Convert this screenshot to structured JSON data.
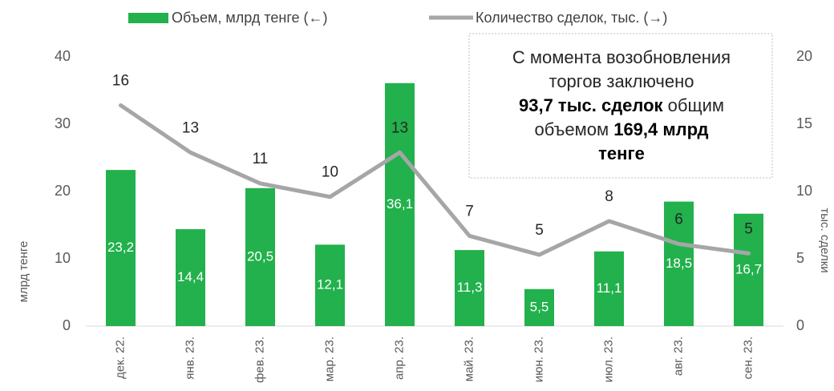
{
  "chart_data": {
    "type": "bar_line",
    "categories": [
      "дек. 22.",
      "янв. 23.",
      "фев. 23.",
      "мар. 23.",
      "апр. 23.",
      "май. 23.",
      "июн. 23.",
      "июл. 23.",
      "авг. 23.",
      "сен. 23."
    ],
    "series": [
      {
        "name": "Объем, млрд тенге (←)",
        "type": "bar",
        "color": "#22b14c",
        "values": [
          23.2,
          14.4,
          20.5,
          12.1,
          36.1,
          11.3,
          5.5,
          11.1,
          18.5,
          16.7
        ],
        "value_labels": [
          "23,2",
          "14,4",
          "20,5",
          "12,1",
          "36,1",
          "11,3",
          "5,5",
          "11,1",
          "18,5",
          "16,7"
        ]
      },
      {
        "name": "Количество сделок, тыс. (→)",
        "type": "line",
        "axis": "y2",
        "color": "#a6a6a6",
        "values": [
          16.4,
          12.9,
          10.6,
          9.6,
          12.9,
          6.7,
          5.3,
          7.8,
          6.1,
          5.4
        ],
        "value_labels": [
          "16",
          "13",
          "11",
          "10",
          "13",
          "7",
          "5",
          "8",
          "6",
          "5"
        ]
      }
    ],
    "y_label": "млрд тенге",
    "y2_label": "тыс. сделки",
    "ylim": [
      0,
      40
    ],
    "yticks": [
      0,
      10,
      20,
      30,
      40
    ],
    "y2lim": [
      0,
      20
    ],
    "y2ticks": [
      0,
      5,
      10,
      15,
      20
    ],
    "annotation": {
      "lines": [
        [
          {
            "text": "С момента возобновления",
            "bold": false
          }
        ],
        [
          {
            "text": "торгов заключено",
            "bold": false
          }
        ],
        [
          {
            "text": "93,7 тыс. сделок",
            "bold": true
          },
          {
            "text": " общим",
            "bold": false
          }
        ],
        [
          {
            "text": "объемом ",
            "bold": false
          },
          {
            "text": "169,4 млрд",
            "bold": true
          }
        ],
        [
          {
            "text": "тенге",
            "bold": true
          }
        ]
      ]
    }
  }
}
